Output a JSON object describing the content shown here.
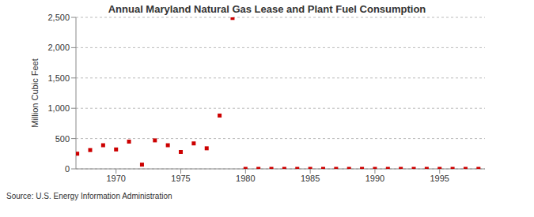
{
  "chart_data": {
    "type": "scatter",
    "title": "Annual Maryland Natural Gas Lease and Plant Fuel Consumption",
    "y_label": "Million Cubic Feet",
    "source": "Source: U.S. Energy Information Administration",
    "x": [
      1967,
      1968,
      1969,
      1970,
      1971,
      1972,
      1973,
      1974,
      1975,
      1976,
      1977,
      1978,
      1979,
      1980,
      1981,
      1982,
      1983,
      1984,
      1985,
      1986,
      1987,
      1988,
      1989,
      1990,
      1991,
      1992,
      1993,
      1994,
      1995,
      1996,
      1997,
      1998
    ],
    "values": [
      250,
      310,
      390,
      320,
      450,
      70,
      470,
      390,
      280,
      420,
      340,
      880,
      2490,
      0,
      0,
      0,
      0,
      0,
      0,
      0,
      0,
      0,
      0,
      0,
      0,
      0,
      0,
      0,
      0,
      0,
      0,
      0
    ],
    "color": "#cc0000",
    "marker": "square",
    "xlim": [
      1966.9,
      1998.5
    ],
    "xticks": [
      1970,
      1975,
      1980,
      1985,
      1990,
      1995
    ],
    "ylim": [
      0,
      2500
    ],
    "yticks": [
      0,
      500,
      {
        "value": 1000,
        "label": "1,000"
      },
      {
        "value": 1500,
        "label": "1,500"
      },
      {
        "value": 2000,
        "label": "2,000"
      },
      {
        "value": 2500,
        "label": "2,500"
      }
    ],
    "grid": true
  }
}
